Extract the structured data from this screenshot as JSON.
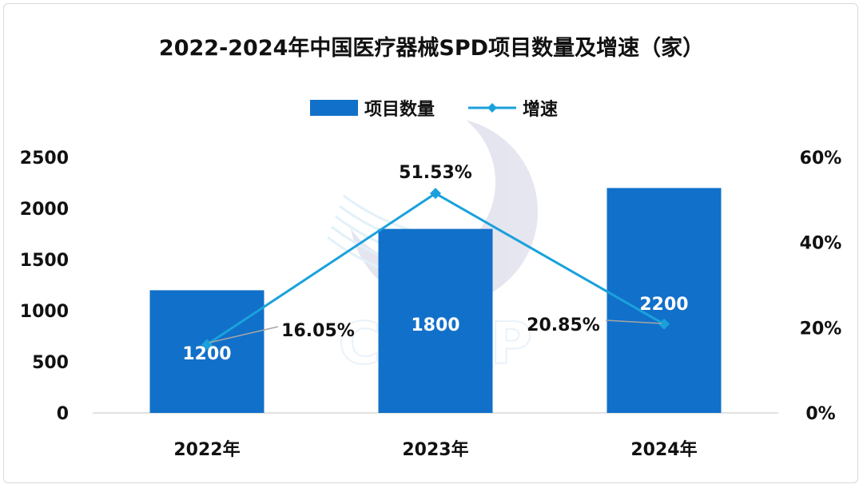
{
  "title": "2022-2024年中国医疗器械SPD项目数量及增速（家）",
  "watermark_text": "CFLP",
  "legend": {
    "bar_label": "项目数量",
    "line_label": "增速"
  },
  "colors": {
    "bar": "#1170c9",
    "line": "#1aa1dc",
    "axis": "#d9d9d9",
    "leader": "#a6a6a6"
  },
  "chart_data": {
    "type": "bar",
    "categories": [
      "2022年",
      "2023年",
      "2024年"
    ],
    "series": [
      {
        "name": "项目数量",
        "type": "bar",
        "axis": "left",
        "values": [
          1200,
          1800,
          2200
        ],
        "labels": [
          "1200",
          "1800",
          "2200"
        ]
      },
      {
        "name": "增速",
        "type": "line",
        "axis": "right",
        "values": [
          16.05,
          51.53,
          20.85
        ],
        "labels": [
          "16.05%",
          "51.53%",
          "20.85%"
        ]
      }
    ],
    "y_left": {
      "ylim": [
        0,
        2500
      ],
      "ticks": [
        0,
        500,
        1000,
        1500,
        2000,
        2500
      ],
      "tick_labels": [
        "0",
        "500",
        "1000",
        "1500",
        "2000",
        "2500"
      ]
    },
    "y_right": {
      "ylim": [
        0,
        60
      ],
      "ticks": [
        0,
        20,
        40,
        60
      ],
      "tick_labels": [
        "0%",
        "20%",
        "40%",
        "60%"
      ]
    },
    "grid": false,
    "legend_position": "top-center"
  }
}
